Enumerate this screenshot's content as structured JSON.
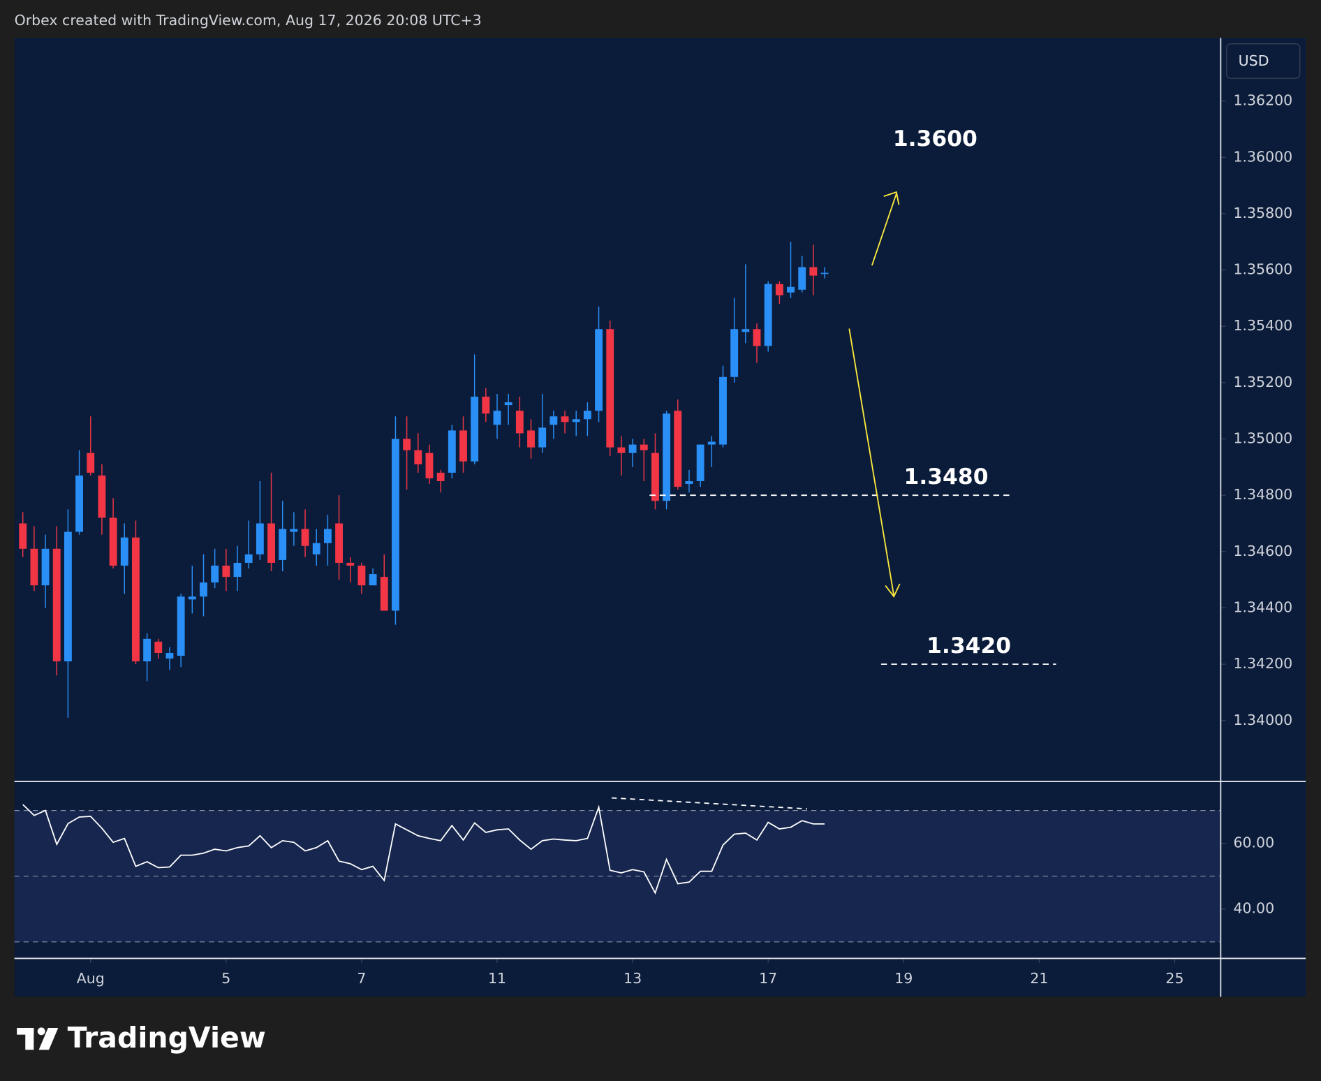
{
  "header": "Orbex created with TradingView.com, Aug 17, 2026 20:08 UTC+3",
  "footer": "TradingView",
  "chart_data": {
    "type": "candlestick",
    "currency": "USD",
    "up_color": "#2a8ff7",
    "down_color": "#f23645",
    "open": [
      1.347,
      1.3461,
      1.3448,
      1.3461,
      1.3421,
      1.3467,
      1.3495,
      1.3487,
      1.3472,
      1.3455,
      1.3465,
      1.3421,
      1.3428,
      1.3422,
      1.3423,
      1.3443,
      1.3444,
      1.3449,
      1.3455,
      1.3451,
      1.3456,
      1.3459,
      1.347,
      1.3457,
      1.3467,
      1.3468,
      1.3459,
      1.3463,
      1.347,
      1.3456,
      1.3455,
      1.3448,
      1.3451,
      1.3439,
      1.35,
      1.3496,
      1.3495,
      1.3488,
      1.3488,
      1.3503,
      1.3492,
      1.3515,
      1.3505,
      1.3512,
      1.351,
      1.3503,
      1.3497,
      1.3505,
      1.3508,
      1.3506,
      1.3507,
      1.351,
      1.3539,
      1.3497,
      1.3495,
      1.3498,
      1.3495,
      1.3478,
      1.351,
      1.3484,
      1.3485,
      1.3498,
      1.3498,
      1.3522,
      1.3538,
      1.3539,
      1.3533,
      1.3555,
      1.3552,
      1.3553,
      1.3561,
      1.3559
    ],
    "high": [
      1.3474,
      1.3469,
      1.3466,
      1.3469,
      1.3475,
      1.3496,
      1.3508,
      1.3491,
      1.3479,
      1.347,
      1.3471,
      1.3431,
      1.3429,
      1.3426,
      1.3445,
      1.3455,
      1.3459,
      1.3461,
      1.3461,
      1.3462,
      1.3471,
      1.3485,
      1.3488,
      1.3478,
      1.3474,
      1.3475,
      1.3468,
      1.3473,
      1.348,
      1.3458,
      1.3456,
      1.3454,
      1.3459,
      1.3508,
      1.3508,
      1.3502,
      1.3498,
      1.3489,
      1.3505,
      1.3508,
      1.353,
      1.3518,
      1.3516,
      1.3516,
      1.3515,
      1.3507,
      1.3516,
      1.351,
      1.351,
      1.351,
      1.3513,
      1.3547,
      1.3542,
      1.3501,
      1.35,
      1.35,
      1.3502,
      1.351,
      1.3514,
      1.3489,
      1.3498,
      1.3501,
      1.3526,
      1.355,
      1.3562,
      1.3541,
      1.3556,
      1.3556,
      1.357,
      1.3565,
      1.3569,
      1.3561
    ],
    "low": [
      1.3458,
      1.3446,
      1.344,
      1.3416,
      1.3401,
      1.3466,
      1.3487,
      1.3466,
      1.3454,
      1.3445,
      1.342,
      1.3414,
      1.3422,
      1.3418,
      1.3419,
      1.3438,
      1.3437,
      1.3447,
      1.3446,
      1.3446,
      1.3454,
      1.3457,
      1.3453,
      1.3453,
      1.3462,
      1.3458,
      1.3455,
      1.3455,
      1.345,
      1.3449,
      1.3445,
      1.3448,
      1.3439,
      1.3434,
      1.3482,
      1.3488,
      1.3484,
      1.3481,
      1.3486,
      1.3488,
      1.3491,
      1.3506,
      1.35,
      1.3505,
      1.3497,
      1.3493,
      1.3495,
      1.35,
      1.3502,
      1.3501,
      1.3501,
      1.3506,
      1.3494,
      1.3487,
      1.349,
      1.3485,
      1.3475,
      1.3475,
      1.3482,
      1.3481,
      1.3483,
      1.349,
      1.3497,
      1.352,
      1.3534,
      1.3527,
      1.3531,
      1.3548,
      1.355,
      1.3552,
      1.3551,
      1.3557
    ],
    "close": [
      1.3461,
      1.3448,
      1.3461,
      1.3421,
      1.3467,
      1.3487,
      1.3488,
      1.3472,
      1.3455,
      1.3465,
      1.3421,
      1.3429,
      1.3424,
      1.3424,
      1.3444,
      1.3444,
      1.3449,
      1.3455,
      1.3451,
      1.3456,
      1.3459,
      1.347,
      1.3456,
      1.3468,
      1.3468,
      1.3462,
      1.3463,
      1.3468,
      1.3456,
      1.3455,
      1.3448,
      1.3452,
      1.3439,
      1.35,
      1.3496,
      1.3491,
      1.3486,
      1.3485,
      1.3503,
      1.3492,
      1.3515,
      1.3509,
      1.351,
      1.3513,
      1.3502,
      1.3497,
      1.3504,
      1.3508,
      1.3506,
      1.3507,
      1.351,
      1.3539,
      1.3497,
      1.3495,
      1.3498,
      1.3496,
      1.3478,
      1.3509,
      1.3483,
      1.3485,
      1.3498,
      1.3499,
      1.3522,
      1.3539,
      1.3539,
      1.3533,
      1.3555,
      1.3551,
      1.3554,
      1.3561,
      1.3558,
      1.3559
    ],
    "xlim": [
      -0.75,
      106
    ],
    "xticks": [
      {
        "value": 6,
        "label": "Aug"
      },
      {
        "value": 18,
        "label": "5"
      },
      {
        "value": 30,
        "label": "7"
      },
      {
        "value": 42,
        "label": "11"
      },
      {
        "value": 54,
        "label": "13"
      },
      {
        "value": 66,
        "label": "17"
      },
      {
        "value": 78,
        "label": "19"
      },
      {
        "value": 90,
        "label": "21"
      },
      {
        "value": 102,
        "label": "25"
      }
    ],
    "ylim": [
      1.33785,
      1.36424
    ],
    "yticks": [
      {
        "value": 1.362,
        "label": "1.36200"
      },
      {
        "value": 1.36,
        "label": "1.36000"
      },
      {
        "value": 1.358,
        "label": "1.35800"
      },
      {
        "value": 1.356,
        "label": "1.35600"
      },
      {
        "value": 1.354,
        "label": "1.35400"
      },
      {
        "value": 1.352,
        "label": "1.35200"
      },
      {
        "value": 1.35,
        "label": "1.35000"
      },
      {
        "value": 1.348,
        "label": "1.34800"
      },
      {
        "value": 1.346,
        "label": "1.34600"
      },
      {
        "value": 1.344,
        "label": "1.34400"
      },
      {
        "value": 1.342,
        "label": "1.34200"
      },
      {
        "value": 1.34,
        "label": "1.34000"
      }
    ],
    "annotations": [
      {
        "value": 1.36,
        "label": "1.3600"
      },
      {
        "value": 1.348,
        "label": "1.3480"
      },
      {
        "value": 1.342,
        "label": "1.3420"
      }
    ],
    "rsi": {
      "color": "#ffffff",
      "values": [
        71.8,
        68.5,
        70,
        59.7,
        66,
        68,
        68.2,
        64.6,
        60.3,
        61.5,
        53,
        54.4,
        52.6,
        52.8,
        56.4,
        56.4,
        57,
        58.2,
        57.7,
        58.7,
        59.2,
        62.3,
        58.7,
        60.8,
        60.3,
        57.7,
        58.7,
        60.8,
        54.6,
        53.8,
        52,
        53,
        48.7,
        65.9,
        64.1,
        62.3,
        61.5,
        60.8,
        65.4,
        61,
        66.2,
        63.3,
        64.1,
        64.4,
        61,
        58.2,
        60.8,
        61.3,
        61,
        60.8,
        61.5,
        71,
        51.8,
        51,
        52,
        51.3,
        44.9,
        55.1,
        47.7,
        48.2,
        51.5,
        51.5,
        59.5,
        62.8,
        63.1,
        61,
        66.4,
        64.4,
        64.9,
        66.9,
        65.9,
        65.9
      ],
      "ylim": [
        25.1,
        78.7
      ],
      "yticks": [
        {
          "value": 60,
          "label": "60.00"
        },
        {
          "value": 40,
          "label": "40.00"
        }
      ],
      "levels": [
        70,
        50,
        30
      ]
    }
  }
}
